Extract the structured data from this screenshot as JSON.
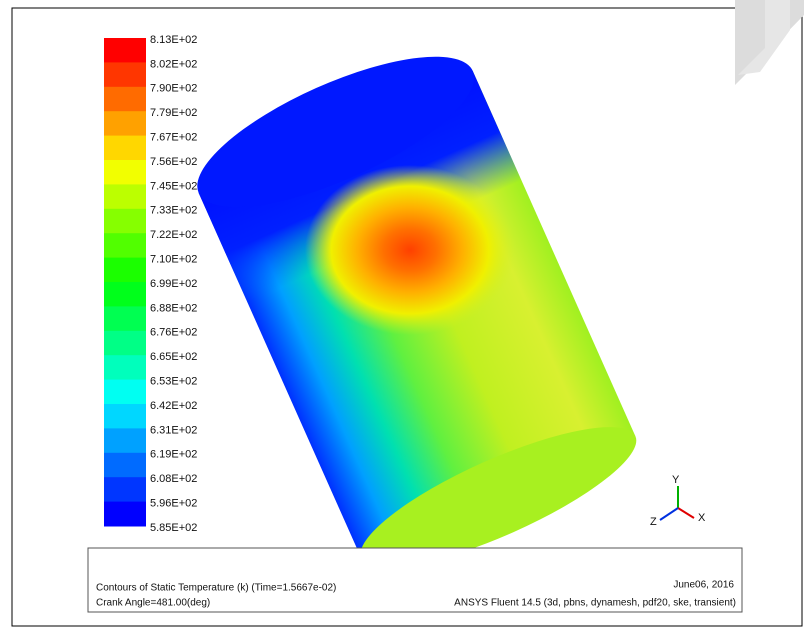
{
  "legend": {
    "labels": [
      "8.13E+02",
      "8.02E+02",
      "7.90E+02",
      "7.79E+02",
      "7.67E+02",
      "7.56E+02",
      "7.45E+02",
      "7.33E+02",
      "7.22E+02",
      "7.10E+02",
      "6.99E+02",
      "6.88E+02",
      "6.76E+02",
      "6.65E+02",
      "6.53E+02",
      "6.42E+02",
      "6.31E+02",
      "6.19E+02",
      "6.08E+02",
      "5.96E+02",
      "5.85E+02"
    ]
  },
  "axes": {
    "y": "Y",
    "x": "X",
    "z": "Z"
  },
  "footer": {
    "left": [
      "Contours of Static Temperature (k)  (Time=1.5667e-02)",
      "Crank Angle=481.00(deg)"
    ],
    "right": [
      "June06, 2016",
      "ANSYS Fluent 14.5 (3d, pbns, dynamesh, pdf20, ske, transient)"
    ]
  }
}
